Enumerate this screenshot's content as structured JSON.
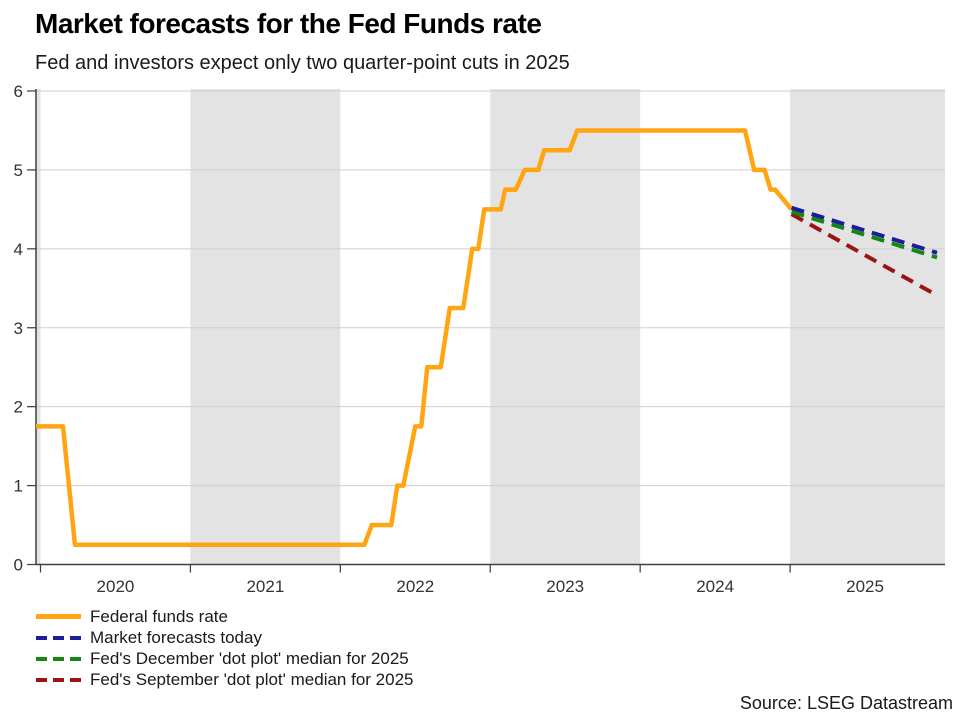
{
  "header": {
    "title": "Market forecasts for the Fed Funds rate",
    "subtitle": "Fed and investors expect only two quarter-point cuts in 2025"
  },
  "footer": {
    "source": "Source: LSEG Datastream"
  },
  "chart_data": {
    "type": "line",
    "title": "Market forecasts for the Fed Funds rate",
    "subtitle": "Fed and investors expect only two quarter-point cuts in 2025",
    "source": "Source: LSEG Datastream",
    "x_axis": {
      "range": [
        2019.9667,
        2026.0333
      ],
      "year_ticks": [
        2020,
        2021,
        2022,
        2023,
        2024,
        2025
      ],
      "year_labels": [
        "2020",
        "2021",
        "2022",
        "2023",
        "2024",
        "2025"
      ],
      "grid": false
    },
    "y_axis": {
      "range": [
        0,
        6
      ],
      "ticks": [
        0,
        1,
        2,
        3,
        4,
        5,
        6
      ],
      "tick_labels": [
        "0",
        "1",
        "2",
        "3",
        "4",
        "5",
        "6"
      ],
      "grid": true
    },
    "shaded_bands": [
      [
        2019.9667,
        2020
      ],
      [
        2021,
        2022
      ],
      [
        2023,
        2024
      ],
      [
        2025,
        2026.0333
      ]
    ],
    "palette": {
      "band": "#e3e3e3",
      "grid": "#cfcfcf",
      "axis": "#404040"
    },
    "legend_position": "bottom-left",
    "series": [
      {
        "id": "federal-funds-rate",
        "name": "Federal funds rate",
        "color": "#FFA512",
        "style": "solid",
        "width": 4.5,
        "z": 1,
        "points": [
          [
            2019.97,
            1.75
          ],
          [
            2020.15,
            1.75
          ],
          [
            2020.23,
            0.25
          ],
          [
            2022.16,
            0.25
          ],
          [
            2022.21,
            0.5
          ],
          [
            2022.34,
            0.5
          ],
          [
            2022.38,
            1.0
          ],
          [
            2022.42,
            1.0
          ],
          [
            2022.5,
            1.75
          ],
          [
            2022.54,
            1.75
          ],
          [
            2022.58,
            2.5
          ],
          [
            2022.67,
            2.5
          ],
          [
            2022.73,
            3.25
          ],
          [
            2022.82,
            3.25
          ],
          [
            2022.88,
            4.0
          ],
          [
            2022.92,
            4.0
          ],
          [
            2022.96,
            4.5
          ],
          [
            2023.07,
            4.5
          ],
          [
            2023.1,
            4.75
          ],
          [
            2023.17,
            4.75
          ],
          [
            2023.23,
            5.0
          ],
          [
            2023.32,
            5.0
          ],
          [
            2023.36,
            5.25
          ],
          [
            2023.53,
            5.25
          ],
          [
            2023.58,
            5.5
          ],
          [
            2024.7,
            5.5
          ],
          [
            2024.76,
            5.0
          ],
          [
            2024.83,
            5.0
          ],
          [
            2024.87,
            4.75
          ],
          [
            2024.9,
            4.75
          ],
          [
            2025.01,
            4.5
          ]
        ]
      },
      {
        "id": "market-forecasts-today",
        "name": "Market forecasts today",
        "color": "#1C1C9C",
        "style": "dashed",
        "dash": "13 8",
        "width": 4,
        "z": 4,
        "points": [
          [
            2025.01,
            4.52
          ],
          [
            2025.98,
            3.95
          ]
        ]
      },
      {
        "id": "fed-december-dot-plot",
        "name": "Fed's December 'dot plot' median for 2025",
        "color": "#128712",
        "style": "dashed",
        "dash": "13 8",
        "width": 4,
        "z": 3,
        "points": [
          [
            2025.01,
            4.47
          ],
          [
            2025.98,
            3.89
          ]
        ]
      },
      {
        "id": "fed-september-dot-plot",
        "name": "Fed's September 'dot plot' median for 2025",
        "color": "#9A1414",
        "style": "dashed",
        "dash": "13 8",
        "width": 4,
        "z": 2,
        "points": [
          [
            2025.01,
            4.44
          ],
          [
            2025.98,
            3.41
          ]
        ]
      }
    ]
  }
}
